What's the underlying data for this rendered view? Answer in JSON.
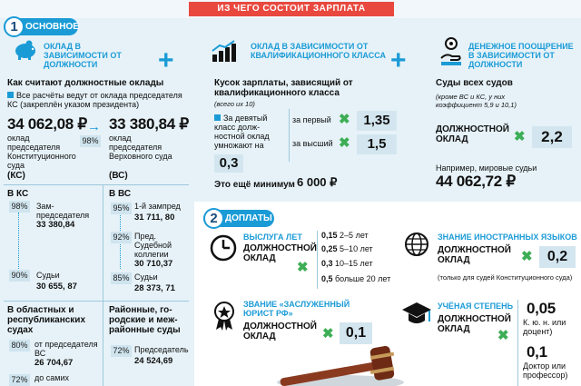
{
  "header": {
    "title": "ИЗ ЧЕГО СОСТОИТ ЗАРПЛАТА"
  },
  "sec1": {
    "num": "1",
    "label": "ОСНОВНОЕ",
    "col1": {
      "title": "ОКЛАД В ЗАВИСИМОСТИ ОТ ДОЛЖНОСТИ",
      "how": "Как считают должностные оклады",
      "note": "Все расчёты ведут от оклада председате­ля КС (закреплён указом президента)",
      "amount_ks": "34 062,08",
      "ks_desc": "оклад председателя Конституционного суда",
      "ks_abbr": "(КС)",
      "pct_main": "98%",
      "amount_vs": "33 380,84",
      "vs_desc": "оклад председателя Верховного суда",
      "vs_abbr": "(ВС)",
      "rub": "₽",
      "ks_head": "В КС",
      "vs_head": "В ВС",
      "ks_rows": [
        {
          "pct": "98%",
          "role": "Зам­председателя",
          "amount": "33 380,84"
        },
        {
          "pct": "90%",
          "role": "Судьи",
          "amount": "30 655, 87"
        }
      ],
      "vs_rows": [
        {
          "pct": "95%",
          "role": "1-й зампред",
          "amount": "31 711, 80"
        },
        {
          "pct": "92%",
          "role": "Пред. Судебной коллегии",
          "amount": "30 710,37"
        },
        {
          "pct": "85%",
          "role": "Судьи",
          "amount": "28 373, 71"
        }
      ],
      "regional_head": "В областных и республикан­ских судах",
      "regional_rows": [
        {
          "pct": "80%",
          "text": "от председате­ля ВС",
          "amount": "26 704,67"
        },
        {
          "pct": "72%",
          "text": "до самих",
          "amount": ""
        }
      ],
      "district_head": "Районные, го­родские и меж­районные суды",
      "district_rows": [
        {
          "pct": "72%",
          "text": "Председатель",
          "amount": "24 524,69"
        }
      ]
    },
    "col2": {
      "title": "ОКЛАД В ЗАВИСИМОСТИ ОТ КВАЛИФИКАЦИОННОГО КЛАССА",
      "desc": "Кусок зарплаты, зависящий от квалифика­ционного класса",
      "desc_small": "(всего их 10)",
      "rule": "За девятый класс долж­ностной оклад умножают на",
      "mult": "0,3",
      "first": "за первый",
      "first_val": "1,35",
      "highest": "за высший",
      "highest_val": "1,5",
      "min_text": "Это ещё минимум",
      "min_val": "6 000",
      "rub": "₽"
    },
    "col3": {
      "title": "ДЕНЕЖНОЕ ПООЩРЕНИЕ В ЗАВИСИМОСТИ ОТ ДОЛЖНОСТИ",
      "head": "Суды всех судов",
      "sub": "(кроме ВС и КС, у них коэффициент 5,9 и 10,1)",
      "label": "ДОЛЖНОСТНОЙ ОКЛАД",
      "mult": "2,2",
      "example": "Например, мировые судьи",
      "example_val": "44 062,72",
      "rub": "₽"
    }
  },
  "sec2": {
    "num": "2",
    "label": "ДОПЛАТЫ",
    "service": {
      "title": "ВЫСЛУГА ЛЕТ",
      "label": "ДОЛЖНОСТНОЙ ОКЛАД",
      "rates": [
        {
          "k": "0,15",
          "t": "2–5 лет"
        },
        {
          "k": "0,25",
          "t": "5–10 лет"
        },
        {
          "k": "0,3",
          "t": "10–15 лет"
        },
        {
          "k": "0,5",
          "t": "больше 20 лет"
        }
      ]
    },
    "lang": {
      "title": "ЗНАНИЕ ИНОСТРАННЫХ ЯЗЫКОВ",
      "label": "ДОЛЖНОСТНОЙ ОКЛАД",
      "val": "0,2",
      "note": "(только для судей Конституционного суда)"
    },
    "honor": {
      "title": "ЗВАНИЕ «ЗАСЛУЖЕННЫЙ ЮРИСТ РФ»",
      "label": "ДОЛЖНОСТНОЙ ОКЛАД",
      "val": "0,1"
    },
    "degree": {
      "title": "УЧЁНАЯ СТЕПЕНЬ",
      "label": "ДОЛЖНОСТНОЙ ОКЛАД",
      "v1": "0,05",
      "v1_note": "К. ю. н. или доцент)",
      "v2": "0,1",
      "v2_note": "Доктор или профессор)"
    }
  },
  "colors": {
    "accent": "#1b9bd6",
    "title_red": "#e8483e",
    "multiply_green": "#3dae55"
  }
}
